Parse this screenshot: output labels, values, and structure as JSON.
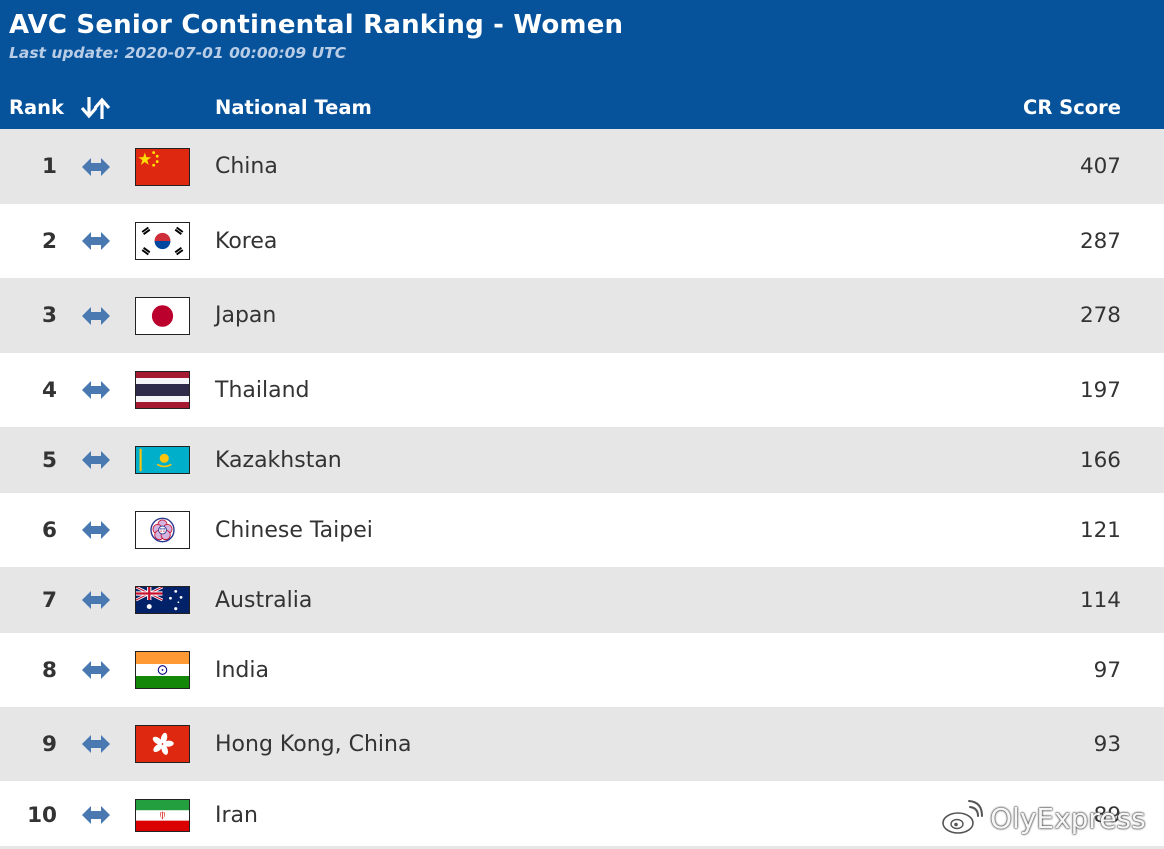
{
  "header": {
    "title": "AVC Senior Continental Ranking - Women",
    "subtitle": "Last update: 2020-07-01 00:00:09 UTC",
    "columns": {
      "rank": "Rank",
      "team": "National Team",
      "score": "CR Score"
    },
    "sort_icon": "sort-arrows-icon"
  },
  "colors": {
    "header_bg": "#06529b",
    "row_alt_bg": "#e6e6e6",
    "move_icon": "#4a78b0"
  },
  "rows": [
    {
      "rank": "1",
      "team": "China",
      "score": "407",
      "movement_icon": "no-change-arrows-icon",
      "flag": "china-flag-icon"
    },
    {
      "rank": "2",
      "team": "Korea",
      "score": "287",
      "movement_icon": "no-change-arrows-icon",
      "flag": "korea-flag-icon"
    },
    {
      "rank": "3",
      "team": "Japan",
      "score": "278",
      "movement_icon": "no-change-arrows-icon",
      "flag": "japan-flag-icon"
    },
    {
      "rank": "4",
      "team": "Thailand",
      "score": "197",
      "movement_icon": "no-change-arrows-icon",
      "flag": "thailand-flag-icon"
    },
    {
      "rank": "5",
      "team": "Kazakhstan",
      "score": "166",
      "movement_icon": "no-change-arrows-icon",
      "flag": "kazakhstan-flag-icon"
    },
    {
      "rank": "6",
      "team": "Chinese Taipei",
      "score": "121",
      "movement_icon": "no-change-arrows-icon",
      "flag": "chinese-taipei-flag-icon"
    },
    {
      "rank": "7",
      "team": "Australia",
      "score": "114",
      "movement_icon": "no-change-arrows-icon",
      "flag": "australia-flag-icon"
    },
    {
      "rank": "8",
      "team": "India",
      "score": "97",
      "movement_icon": "no-change-arrows-icon",
      "flag": "india-flag-icon"
    },
    {
      "rank": "9",
      "team": "Hong Kong, China",
      "score": "93",
      "movement_icon": "no-change-arrows-icon",
      "flag": "hong-kong-flag-icon"
    },
    {
      "rank": "10",
      "team": "Iran",
      "score": "89",
      "movement_icon": "no-change-arrows-icon",
      "flag": "iran-flag-icon"
    }
  ],
  "watermark": {
    "text": "OlyExpress",
    "icon": "weibo-logo-icon"
  }
}
